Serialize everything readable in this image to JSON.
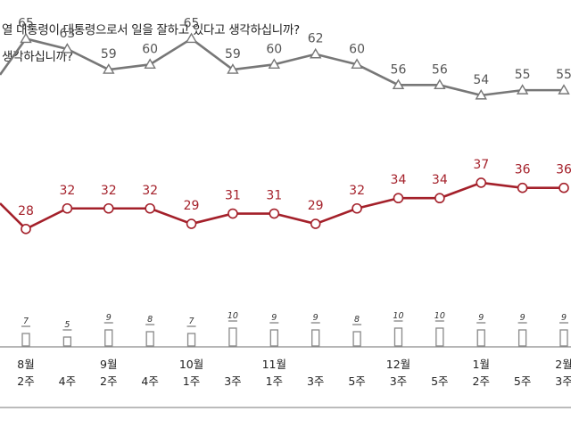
{
  "header": {
    "question_line1": "열 대통령이 대통령으로서 일을 잘하고 있다고 생각하십니까?",
    "question_line2": "생각하십니까?"
  },
  "chart_data": {
    "type": "line",
    "categories": [
      [
        "8월",
        "2주"
      ],
      [
        "",
        "4주"
      ],
      [
        "9월",
        "2주"
      ],
      [
        "",
        "4주"
      ],
      [
        "10월",
        "1주"
      ],
      [
        "",
        "3주"
      ],
      [
        "11월",
        "1주"
      ],
      [
        "",
        "3주"
      ],
      [
        "",
        "5주"
      ],
      [
        "12월",
        "3주"
      ],
      [
        "",
        "5주"
      ],
      [
        "1월",
        "2주"
      ],
      [
        "",
        "5주"
      ],
      [
        "2월",
        "3주"
      ]
    ],
    "series": [
      {
        "values": [
          65,
          63,
          59,
          60,
          65,
          59,
          60,
          62,
          60,
          56,
          56,
          54,
          55,
          55
        ],
        "color": "#777777",
        "marker": "triangle"
      },
      {
        "values": [
          28,
          32,
          32,
          32,
          29,
          31,
          31,
          29,
          32,
          34,
          34,
          37,
          36,
          36
        ],
        "color": "#a4202a",
        "marker": "circle"
      },
      {
        "type": "bar",
        "values": [
          7,
          5,
          9,
          8,
          7,
          10,
          9,
          9,
          8,
          10,
          10,
          9,
          9,
          9
        ],
        "color": "#888888"
      }
    ],
    "first_point_outside": {
      "upper": 58,
      "lower": 33
    },
    "grid": false,
    "legend": "none"
  }
}
